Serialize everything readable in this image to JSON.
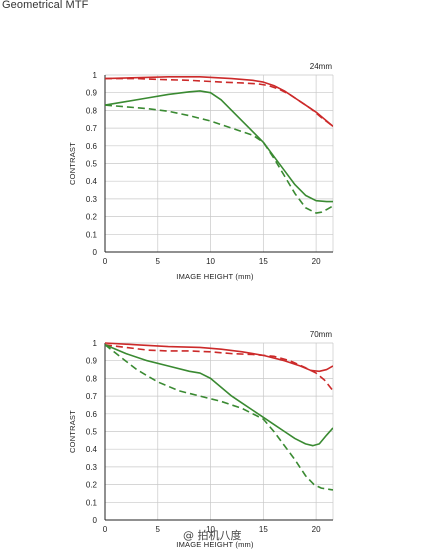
{
  "page": {
    "title": "Geometrical MTF"
  },
  "watermark": "@ 拍机八度",
  "colors": {
    "red": "#cc2a2a",
    "green": "#3a8a32",
    "grid": "#c8c8c8",
    "axis": "#222222"
  },
  "chart_data": [
    {
      "type": "line",
      "label": "24mm",
      "xlabel": "IMAGE HEIGHT (mm)",
      "ylabel": "CONTRAST",
      "xlim": [
        0,
        21.6
      ],
      "ylim": [
        0,
        1
      ],
      "xticks": [
        "0",
        "5",
        "10",
        "15",
        "20"
      ],
      "yticks": [
        "0",
        "0.1",
        "0.2",
        "0.3",
        "0.4",
        "0.5",
        "0.6",
        "0.7",
        "0.8",
        "0.9",
        "1"
      ],
      "series": [
        {
          "color": "red",
          "style": "solid",
          "points": [
            [
              0,
              0.98
            ],
            [
              3,
              0.985
            ],
            [
              6,
              0.99
            ],
            [
              9,
              0.99
            ],
            [
              12,
              0.98
            ],
            [
              14,
              0.97
            ],
            [
              15,
              0.96
            ],
            [
              16,
              0.94
            ],
            [
              17,
              0.91
            ],
            [
              18,
              0.87
            ],
            [
              19,
              0.83
            ],
            [
              20,
              0.79
            ],
            [
              21,
              0.74
            ],
            [
              21.6,
              0.71
            ]
          ]
        },
        {
          "color": "red",
          "style": "dashed",
          "points": [
            [
              0,
              0.98
            ],
            [
              3,
              0.98
            ],
            [
              5,
              0.975
            ],
            [
              8,
              0.97
            ],
            [
              11,
              0.96
            ],
            [
              13,
              0.955
            ],
            [
              14.5,
              0.95
            ],
            [
              15.5,
              0.94
            ],
            [
              16.5,
              0.92
            ],
            [
              17.5,
              0.89
            ],
            [
              18.5,
              0.85
            ],
            [
              19.5,
              0.81
            ],
            [
              20.5,
              0.76
            ],
            [
              21.6,
              0.71
            ]
          ]
        },
        {
          "color": "green",
          "style": "solid",
          "points": [
            [
              0,
              0.83
            ],
            [
              2,
              0.85
            ],
            [
              4,
              0.87
            ],
            [
              6,
              0.89
            ],
            [
              8,
              0.905
            ],
            [
              9,
              0.91
            ],
            [
              10,
              0.9
            ],
            [
              11,
              0.86
            ],
            [
              12,
              0.8
            ],
            [
              13,
              0.74
            ],
            [
              14,
              0.68
            ],
            [
              15,
              0.62
            ],
            [
              16,
              0.54
            ],
            [
              17,
              0.46
            ],
            [
              18,
              0.38
            ],
            [
              19,
              0.32
            ],
            [
              20,
              0.29
            ],
            [
              21,
              0.285
            ],
            [
              21.6,
              0.285
            ]
          ]
        },
        {
          "color": "green",
          "style": "dashed",
          "points": [
            [
              0,
              0.83
            ],
            [
              2,
              0.82
            ],
            [
              4,
              0.81
            ],
            [
              6,
              0.795
            ],
            [
              8,
              0.77
            ],
            [
              10,
              0.74
            ],
            [
              12,
              0.7
            ],
            [
              13,
              0.68
            ],
            [
              14,
              0.66
            ],
            [
              15,
              0.62
            ],
            [
              16,
              0.53
            ],
            [
              17,
              0.43
            ],
            [
              18,
              0.33
            ],
            [
              19,
              0.25
            ],
            [
              20,
              0.22
            ],
            [
              20.5,
              0.225
            ],
            [
              21,
              0.24
            ],
            [
              21.6,
              0.26
            ]
          ]
        }
      ]
    },
    {
      "type": "line",
      "label": "70mm",
      "xlabel": "IMAGE HEIGHT (mm)",
      "ylabel": "CONTRAST",
      "xlim": [
        0,
        21.6
      ],
      "ylim": [
        0,
        1
      ],
      "xticks": [
        "0",
        "5",
        "10",
        "15",
        "20"
      ],
      "yticks": [
        "0",
        "0.1",
        "0.2",
        "0.3",
        "0.4",
        "0.5",
        "0.6",
        "0.7",
        "0.8",
        "0.9",
        "1"
      ],
      "series": [
        {
          "color": "red",
          "style": "solid",
          "points": [
            [
              0,
              1.0
            ],
            [
              3,
              0.99
            ],
            [
              6,
              0.98
            ],
            [
              9,
              0.975
            ],
            [
              11,
              0.965
            ],
            [
              13,
              0.95
            ],
            [
              15,
              0.93
            ],
            [
              17,
              0.9
            ],
            [
              18.5,
              0.87
            ],
            [
              19.5,
              0.845
            ],
            [
              20.3,
              0.84
            ],
            [
              21,
              0.85
            ],
            [
              21.6,
              0.87
            ]
          ]
        },
        {
          "color": "red",
          "style": "dashed",
          "points": [
            [
              0,
              0.99
            ],
            [
              2,
              0.975
            ],
            [
              4,
              0.96
            ],
            [
              6,
              0.955
            ],
            [
              8,
              0.955
            ],
            [
              10,
              0.95
            ],
            [
              12,
              0.94
            ],
            [
              14,
              0.935
            ],
            [
              16,
              0.925
            ],
            [
              17.5,
              0.9
            ],
            [
              19,
              0.86
            ],
            [
              20,
              0.83
            ],
            [
              20.8,
              0.79
            ],
            [
              21.6,
              0.73
            ]
          ]
        },
        {
          "color": "green",
          "style": "solid",
          "points": [
            [
              0,
              0.99
            ],
            [
              2,
              0.94
            ],
            [
              4,
              0.9
            ],
            [
              6,
              0.87
            ],
            [
              8,
              0.84
            ],
            [
              9,
              0.83
            ],
            [
              10,
              0.8
            ],
            [
              11,
              0.75
            ],
            [
              12,
              0.7
            ],
            [
              13,
              0.66
            ],
            [
              14,
              0.62
            ],
            [
              15,
              0.58
            ],
            [
              16,
              0.54
            ],
            [
              17,
              0.5
            ],
            [
              18,
              0.46
            ],
            [
              19,
              0.43
            ],
            [
              19.7,
              0.42
            ],
            [
              20.3,
              0.43
            ],
            [
              21,
              0.48
            ],
            [
              21.6,
              0.52
            ]
          ]
        },
        {
          "color": "green",
          "style": "dashed",
          "points": [
            [
              0,
              0.99
            ],
            [
              1.5,
              0.92
            ],
            [
              3,
              0.85
            ],
            [
              5,
              0.78
            ],
            [
              7,
              0.73
            ],
            [
              9,
              0.7
            ],
            [
              11,
              0.67
            ],
            [
              13,
              0.63
            ],
            [
              15,
              0.57
            ],
            [
              16,
              0.5
            ],
            [
              17,
              0.42
            ],
            [
              18,
              0.34
            ],
            [
              19,
              0.25
            ],
            [
              19.8,
              0.2
            ],
            [
              20.5,
              0.18
            ],
            [
              21.6,
              0.17
            ]
          ]
        }
      ]
    }
  ]
}
